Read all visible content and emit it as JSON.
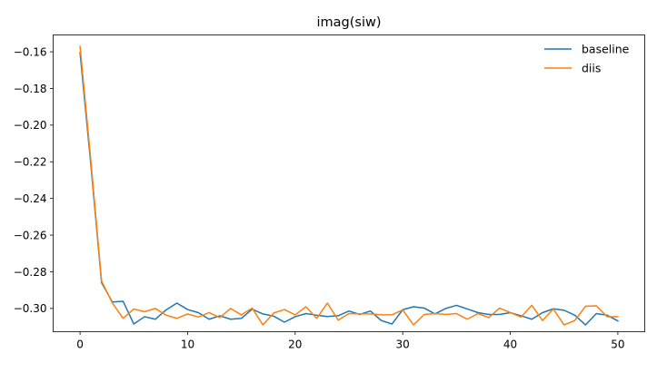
{
  "chart_data": {
    "type": "line",
    "title": "imag(siw)",
    "xlabel": "",
    "ylabel": "",
    "xlim": [
      -2.5,
      52.5
    ],
    "ylim": [
      -0.3127,
      -0.1508
    ],
    "xticks": [
      0,
      10,
      20,
      30,
      40,
      50
    ],
    "yticks": [
      -0.16,
      -0.18,
      -0.2,
      -0.22,
      -0.24,
      -0.26,
      -0.28,
      -0.3
    ],
    "ytick_labels": [
      "−0.16",
      "−0.18",
      "−0.20",
      "−0.22",
      "−0.24",
      "−0.26",
      "−0.28",
      "−0.30"
    ],
    "xtick_labels": [
      "0",
      "10",
      "20",
      "30",
      "40",
      "50"
    ],
    "grid": false,
    "legend_position": "top-right",
    "x": [
      0,
      1,
      2,
      3,
      4,
      5,
      6,
      7,
      8,
      9,
      10,
      11,
      12,
      13,
      14,
      15,
      16,
      17,
      18,
      19,
      20,
      21,
      22,
      23,
      24,
      25,
      26,
      27,
      28,
      29,
      30,
      31,
      32,
      33,
      34,
      35,
      36,
      37,
      38,
      39,
      40,
      41,
      42,
      43,
      44,
      45,
      46,
      47,
      48,
      49,
      50
    ],
    "series": [
      {
        "name": "baseline",
        "color": "#1f77b4",
        "values": [
          -0.1605,
          -0.2213,
          -0.2859,
          -0.2965,
          -0.2961,
          -0.3085,
          -0.3045,
          -0.3059,
          -0.3008,
          -0.2971,
          -0.3006,
          -0.3023,
          -0.3059,
          -0.304,
          -0.3059,
          -0.3054,
          -0.3004,
          -0.303,
          -0.3042,
          -0.3075,
          -0.3045,
          -0.3028,
          -0.3037,
          -0.3044,
          -0.304,
          -0.3014,
          -0.3033,
          -0.3014,
          -0.3066,
          -0.3085,
          -0.3007,
          -0.2991,
          -0.2998,
          -0.303,
          -0.3,
          -0.2983,
          -0.3003,
          -0.3023,
          -0.3033,
          -0.3033,
          -0.3023,
          -0.304,
          -0.3059,
          -0.3023,
          -0.3002,
          -0.301,
          -0.3037,
          -0.309,
          -0.3028,
          -0.3037,
          -0.3068
        ]
      },
      {
        "name": "diis",
        "color": "#ff7f0e",
        "values": [
          -0.157,
          -0.2193,
          -0.285,
          -0.297,
          -0.3054,
          -0.3003,
          -0.3018,
          -0.3,
          -0.3037,
          -0.3054,
          -0.303,
          -0.3047,
          -0.3023,
          -0.305,
          -0.3,
          -0.3035,
          -0.2998,
          -0.309,
          -0.3025,
          -0.3006,
          -0.3035,
          -0.2991,
          -0.3054,
          -0.2971,
          -0.3064,
          -0.3028,
          -0.303,
          -0.303,
          -0.3035,
          -0.3035,
          -0.3008,
          -0.309,
          -0.3033,
          -0.3028,
          -0.3033,
          -0.3028,
          -0.3059,
          -0.3028,
          -0.305,
          -0.2998,
          -0.3023,
          -0.3047,
          -0.2983,
          -0.3066,
          -0.3003,
          -0.309,
          -0.3066,
          -0.2988,
          -0.2986,
          -0.3045,
          -0.3045
        ]
      }
    ]
  }
}
